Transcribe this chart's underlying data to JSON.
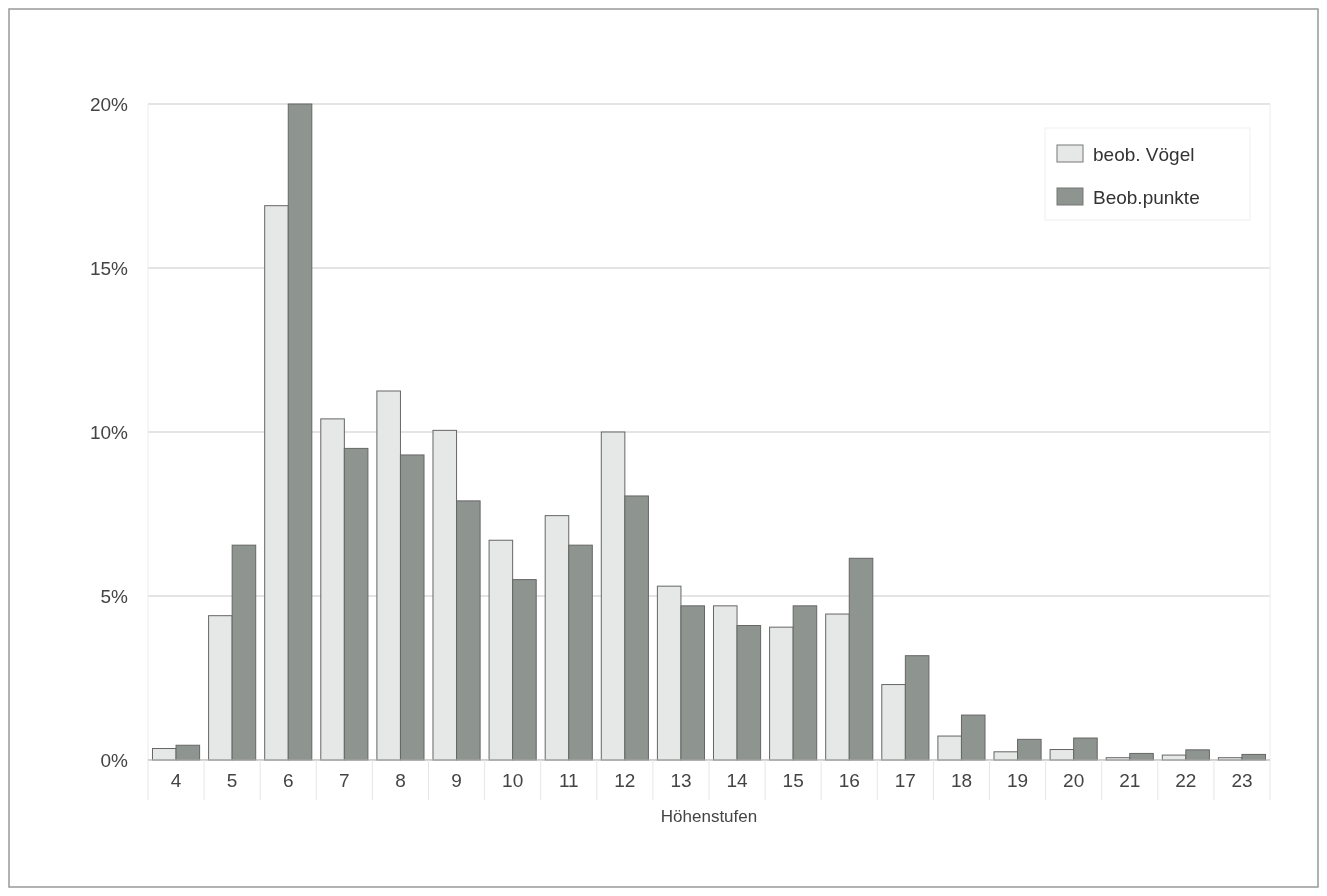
{
  "chart_data": {
    "type": "bar",
    "xlabel": "Höhenstufen",
    "categories": [
      "4",
      "5",
      "6",
      "7",
      "8",
      "9",
      "10",
      "11",
      "12",
      "13",
      "14",
      "15",
      "16",
      "17",
      "18",
      "19",
      "20",
      "21",
      "22",
      "23"
    ],
    "series": [
      {
        "name": "beob. Vögel",
        "color": "#e6e8e8",
        "values": [
          0.35,
          4.4,
          16.9,
          10.4,
          11.25,
          10.05,
          6.7,
          7.45,
          10.0,
          5.3,
          4.7,
          4.05,
          4.45,
          2.3,
          0.73,
          0.25,
          0.32,
          0.07,
          0.15,
          0.07
        ]
      },
      {
        "name": "Beob.punkte",
        "color": "#8e9490",
        "values": [
          0.45,
          6.55,
          20.0,
          9.5,
          9.3,
          7.9,
          5.5,
          6.55,
          8.05,
          4.7,
          4.1,
          4.7,
          6.15,
          3.18,
          1.37,
          0.63,
          0.67,
          0.2,
          0.31,
          0.17
        ]
      }
    ],
    "ylim": [
      0,
      20
    ],
    "yticks": [
      {
        "value": 0,
        "label": "0%"
      },
      {
        "value": 5,
        "label": "5%"
      },
      {
        "value": 10,
        "label": "10%"
      },
      {
        "value": 15,
        "label": "15%"
      },
      {
        "value": 20,
        "label": "20%"
      }
    ],
    "grid": "y",
    "legend": "top right"
  }
}
